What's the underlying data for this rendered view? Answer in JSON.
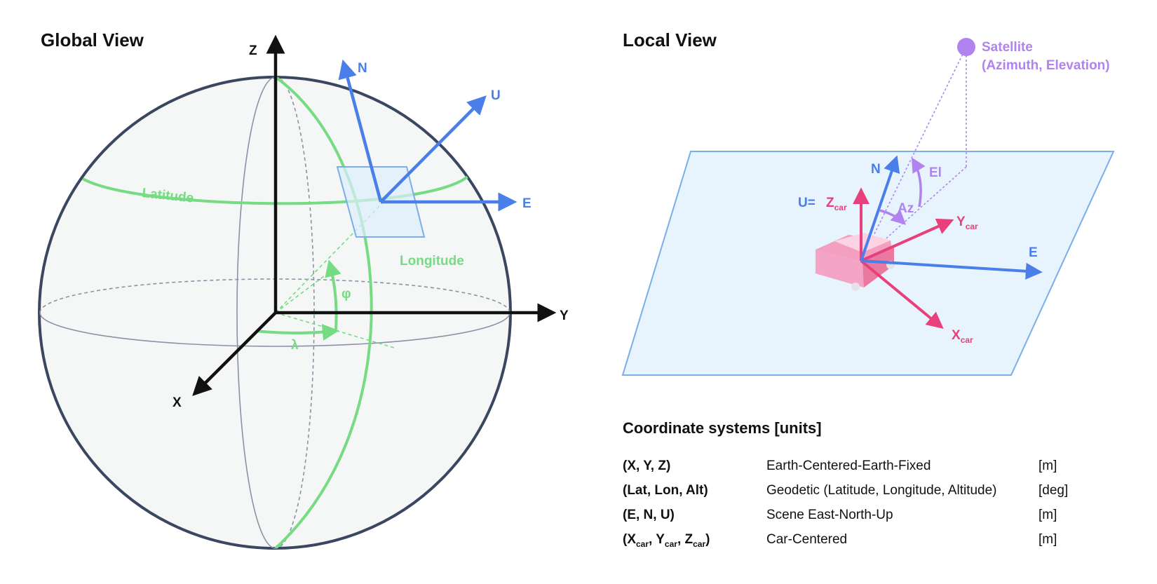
{
  "global_view": {
    "title": "Global View",
    "axes": {
      "x": "X",
      "y": "Y",
      "z": "Z"
    },
    "local_axes": {
      "north": "N",
      "east": "E",
      "up": "U"
    },
    "latitude_label": "Latitude",
    "longitude_label": "Longitude",
    "phi_label": "φ",
    "lambda_label": "λ"
  },
  "local_view": {
    "title": "Local View",
    "satellite_label": "Satellite",
    "satellite_sublabel": "(Azimuth, Elevation)",
    "north": "N",
    "east": "E",
    "up_prefix": "U=",
    "z_car": "Z",
    "y_car": "Y",
    "x_car": "X",
    "car_sub": "car",
    "azimuth_label": "Az",
    "elevation_label": "El"
  },
  "legend": {
    "title": "Coordinate systems [units]",
    "rows": [
      {
        "symbol": "(X, Y, Z)",
        "description": "Earth-Centered-Earth-Fixed",
        "unit": "[m]"
      },
      {
        "symbol": "(Lat, Lon, Alt)",
        "description": "Geodetic (Latitude, Longitude, Altitude)",
        "unit": "[deg]"
      },
      {
        "symbol": "(E, N, U)",
        "description": "Scene East-North-Up",
        "unit": "[m]"
      },
      {
        "symbol_parts": [
          "(X",
          "car",
          ", Y",
          "car",
          ", Z",
          "car",
          ")"
        ],
        "description": "Car-Centered",
        "unit": "[m]"
      }
    ]
  },
  "colors": {
    "green": "#76db82",
    "blue": "#4a7ee8",
    "pink": "#e8407a",
    "purple": "#b083f0",
    "sphere_outline": "#3b4660",
    "plane_fill": "#e8f4fd",
    "plane_stroke": "#7aaee8"
  }
}
